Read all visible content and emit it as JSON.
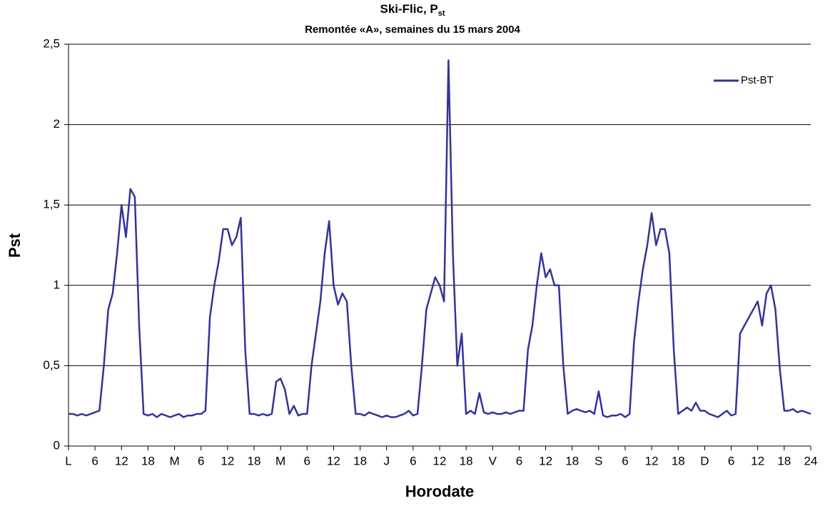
{
  "chart_data": {
    "type": "line",
    "title": "Ski-Flic, P",
    "title_subscript": "st",
    "subtitle": "Remontée «A», semaines du 15 mars 2004",
    "x_label": "Horodate",
    "y_label": "Pst",
    "legend": "top-right",
    "grid": true,
    "xlim": [
      0,
      168
    ],
    "ylim": [
      0,
      2.5
    ],
    "yticks": [
      0,
      {
        "value": 0.5,
        "label": "0,5"
      },
      1,
      {
        "value": 1.5,
        "label": "1,5"
      },
      2,
      {
        "value": 2.5,
        "label": "2,5"
      }
    ],
    "xticks": [
      {
        "value": 0,
        "label": "L"
      },
      6,
      12,
      18,
      {
        "value": 24,
        "label": "M"
      },
      {
        "value": 30,
        "label": "6"
      },
      {
        "value": 36,
        "label": "12"
      },
      {
        "value": 42,
        "label": "18"
      },
      {
        "value": 48,
        "label": "M"
      },
      {
        "value": 54,
        "label": "6"
      },
      {
        "value": 60,
        "label": "12"
      },
      {
        "value": 66,
        "label": "18"
      },
      {
        "value": 72,
        "label": "J"
      },
      {
        "value": 78,
        "label": "6"
      },
      {
        "value": 84,
        "label": "12"
      },
      {
        "value": 90,
        "label": "18"
      },
      {
        "value": 96,
        "label": "V"
      },
      {
        "value": 102,
        "label": "6"
      },
      {
        "value": 108,
        "label": "12"
      },
      {
        "value": 114,
        "label": "18"
      },
      {
        "value": 120,
        "label": "S"
      },
      {
        "value": 126,
        "label": "6"
      },
      {
        "value": 132,
        "label": "12"
      },
      {
        "value": 138,
        "label": "18"
      },
      {
        "value": 144,
        "label": "D"
      },
      {
        "value": 150,
        "label": "6"
      },
      {
        "value": 156,
        "label": "12"
      },
      {
        "value": 162,
        "label": "18"
      },
      {
        "value": 168,
        "label": "24"
      }
    ],
    "x": [
      0,
      1,
      2,
      3,
      4,
      5,
      6,
      7,
      8,
      9,
      10,
      11,
      12,
      13,
      14,
      15,
      16,
      17,
      18,
      19,
      20,
      21,
      22,
      23,
      24,
      25,
      26,
      27,
      28,
      29,
      30,
      31,
      32,
      33,
      34,
      35,
      36,
      37,
      38,
      39,
      40,
      41,
      42,
      43,
      44,
      45,
      46,
      47,
      48,
      49,
      50,
      51,
      52,
      53,
      54,
      55,
      56,
      57,
      58,
      59,
      60,
      61,
      62,
      63,
      64,
      65,
      66,
      67,
      68,
      69,
      70,
      71,
      72,
      73,
      74,
      75,
      76,
      77,
      78,
      79,
      80,
      81,
      82,
      83,
      84,
      85,
      86,
      87,
      88,
      89,
      90,
      91,
      92,
      93,
      94,
      95,
      96,
      97,
      98,
      99,
      100,
      101,
      102,
      103,
      104,
      105,
      106,
      107,
      108,
      109,
      110,
      111,
      112,
      113,
      114,
      115,
      116,
      117,
      118,
      119,
      120,
      121,
      122,
      123,
      124,
      125,
      126,
      127,
      128,
      129,
      130,
      131,
      132,
      133,
      134,
      135,
      136,
      137,
      138,
      139,
      140,
      141,
      142,
      143,
      144,
      145,
      146,
      147,
      148,
      149,
      150,
      151,
      152,
      153,
      154,
      155,
      156,
      157,
      158,
      159,
      160,
      161,
      162,
      163,
      164,
      165,
      166,
      167,
      168
    ],
    "series": [
      {
        "name": "Pst-BT",
        "color": "#333399",
        "values": [
          0.2,
          0.2,
          0.19,
          0.2,
          0.19,
          0.2,
          0.21,
          0.22,
          0.5,
          0.85,
          0.95,
          1.2,
          1.5,
          1.3,
          1.6,
          1.55,
          0.75,
          0.2,
          0.19,
          0.2,
          0.18,
          0.2,
          0.19,
          0.18,
          0.19,
          0.2,
          0.18,
          0.19,
          0.19,
          0.2,
          0.2,
          0.22,
          0.8,
          1.0,
          1.15,
          1.35,
          1.35,
          1.25,
          1.3,
          1.42,
          0.6,
          0.2,
          0.2,
          0.19,
          0.2,
          0.19,
          0.2,
          0.4,
          0.42,
          0.35,
          0.2,
          0.25,
          0.19,
          0.2,
          0.2,
          0.5,
          0.7,
          0.9,
          1.2,
          1.4,
          1.0,
          0.88,
          0.95,
          0.9,
          0.5,
          0.2,
          0.2,
          0.19,
          0.21,
          0.2,
          0.19,
          0.18,
          0.19,
          0.18,
          0.18,
          0.19,
          0.2,
          0.22,
          0.19,
          0.2,
          0.5,
          0.85,
          0.95,
          1.05,
          1.0,
          0.9,
          2.4,
          1.2,
          0.5,
          0.7,
          0.2,
          0.22,
          0.2,
          0.33,
          0.21,
          0.2,
          0.21,
          0.2,
          0.2,
          0.21,
          0.2,
          0.21,
          0.22,
          0.22,
          0.6,
          0.75,
          1.0,
          1.2,
          1.05,
          1.1,
          1.0,
          1.0,
          0.5,
          0.2,
          0.22,
          0.23,
          0.22,
          0.21,
          0.22,
          0.2,
          0.34,
          0.19,
          0.18,
          0.19,
          0.19,
          0.2,
          0.18,
          0.2,
          0.65,
          0.9,
          1.1,
          1.25,
          1.45,
          1.25,
          1.35,
          1.35,
          1.2,
          0.6,
          0.2,
          0.22,
          0.24,
          0.22,
          0.27,
          0.22,
          0.22,
          0.2,
          0.19,
          0.18,
          0.2,
          0.22,
          0.19,
          0.2,
          0.7,
          0.75,
          0.8,
          0.85,
          0.9,
          0.75,
          0.95,
          1.0,
          0.85,
          0.48,
          0.22,
          0.22,
          0.23,
          0.21,
          0.22,
          0.21,
          0.2
        ]
      }
    ]
  }
}
